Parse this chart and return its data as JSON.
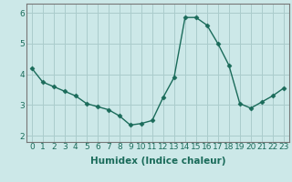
{
  "x": [
    0,
    1,
    2,
    3,
    4,
    5,
    6,
    7,
    8,
    9,
    10,
    11,
    12,
    13,
    14,
    15,
    16,
    17,
    18,
    19,
    20,
    21,
    22,
    23
  ],
  "y": [
    4.2,
    3.75,
    3.6,
    3.45,
    3.3,
    3.05,
    2.95,
    2.85,
    2.65,
    2.35,
    2.4,
    2.5,
    3.25,
    3.9,
    5.85,
    5.85,
    5.6,
    5.0,
    4.3,
    3.05,
    2.9,
    3.1,
    3.3,
    3.55
  ],
  "line_color": "#1a6b5a",
  "marker": "D",
  "marker_size": 2.5,
  "bg_color": "#cce8e8",
  "grid_color": "#aacccc",
  "xlabel": "Humidex (Indice chaleur)",
  "xlim": [
    -0.5,
    23.5
  ],
  "ylim": [
    1.8,
    6.3
  ],
  "yticks": [
    2,
    3,
    4,
    5,
    6
  ],
  "xticks": [
    0,
    1,
    2,
    3,
    4,
    5,
    6,
    7,
    8,
    9,
    10,
    11,
    12,
    13,
    14,
    15,
    16,
    17,
    18,
    19,
    20,
    21,
    22,
    23
  ],
  "xtick_labels": [
    "0",
    "1",
    "2",
    "3",
    "4",
    "5",
    "6",
    "7",
    "8",
    "9",
    "10",
    "11",
    "12",
    "13",
    "14",
    "15",
    "16",
    "17",
    "18",
    "19",
    "20",
    "21",
    "22",
    "23"
  ],
  "xlabel_fontsize": 7.5,
  "tick_fontsize": 6.5,
  "spine_color": "#777777"
}
